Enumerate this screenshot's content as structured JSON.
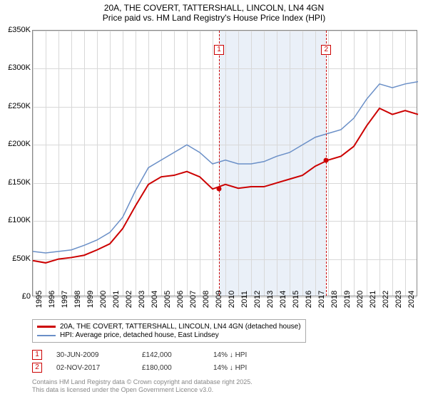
{
  "title": {
    "line1": "20A, THE COVERT, TATTERSHALL, LINCOLN, LN4 4GN",
    "line2": "Price paid vs. HM Land Registry's House Price Index (HPI)"
  },
  "chart": {
    "type": "line",
    "background_color": "#ffffff",
    "grid_color": "#d8d8d8",
    "border_color": "#888888",
    "x_years": [
      1995,
      1996,
      1997,
      1998,
      1999,
      2000,
      2001,
      2002,
      2003,
      2004,
      2005,
      2006,
      2007,
      2008,
      2009,
      2010,
      2011,
      2012,
      2013,
      2014,
      2015,
      2016,
      2017,
      2018,
      2019,
      2020,
      2021,
      2022,
      2023,
      2024
    ],
    "xlim": [
      1995,
      2025
    ],
    "ylim": [
      0,
      350000
    ],
    "ytick_step": 50000,
    "ytick_labels": [
      "£0",
      "£50K",
      "£100K",
      "£150K",
      "£200K",
      "£250K",
      "£300K",
      "£350K"
    ],
    "label_fontsize": 11,
    "shaded_region": {
      "x_start": 2009.5,
      "x_end": 2017.85,
      "color": "#eaf0f8"
    },
    "markers": [
      {
        "id": "1",
        "x": 2009.5,
        "y": 142000,
        "line_color": "#cc0000"
      },
      {
        "id": "2",
        "x": 2017.85,
        "y": 180000,
        "line_color": "#cc0000"
      }
    ],
    "series": [
      {
        "name": "20A, THE COVERT, TATTERSHALL, LINCOLN, LN4 4GN (detached house)",
        "color": "#cc0000",
        "line_width": 2,
        "data": [
          [
            1995,
            48000
          ],
          [
            1996,
            45000
          ],
          [
            1997,
            50000
          ],
          [
            1998,
            52000
          ],
          [
            1999,
            55000
          ],
          [
            2000,
            62000
          ],
          [
            2001,
            70000
          ],
          [
            2002,
            90000
          ],
          [
            2003,
            120000
          ],
          [
            2004,
            148000
          ],
          [
            2005,
            158000
          ],
          [
            2006,
            160000
          ],
          [
            2007,
            165000
          ],
          [
            2008,
            158000
          ],
          [
            2009,
            142000
          ],
          [
            2010,
            148000
          ],
          [
            2011,
            143000
          ],
          [
            2012,
            145000
          ],
          [
            2013,
            145000
          ],
          [
            2014,
            150000
          ],
          [
            2015,
            155000
          ],
          [
            2016,
            160000
          ],
          [
            2017,
            172000
          ],
          [
            2018,
            180000
          ],
          [
            2019,
            185000
          ],
          [
            2020,
            198000
          ],
          [
            2021,
            225000
          ],
          [
            2022,
            248000
          ],
          [
            2023,
            240000
          ],
          [
            2024,
            245000
          ],
          [
            2025,
            240000
          ]
        ]
      },
      {
        "name": "HPI: Average price, detached house, East Lindsey",
        "color": "#6a8fc7",
        "line_width": 1.5,
        "data": [
          [
            1995,
            60000
          ],
          [
            1996,
            58000
          ],
          [
            1997,
            60000
          ],
          [
            1998,
            62000
          ],
          [
            1999,
            68000
          ],
          [
            2000,
            75000
          ],
          [
            2001,
            85000
          ],
          [
            2002,
            105000
          ],
          [
            2003,
            140000
          ],
          [
            2004,
            170000
          ],
          [
            2005,
            180000
          ],
          [
            2006,
            190000
          ],
          [
            2007,
            200000
          ],
          [
            2008,
            190000
          ],
          [
            2009,
            175000
          ],
          [
            2010,
            180000
          ],
          [
            2011,
            175000
          ],
          [
            2012,
            175000
          ],
          [
            2013,
            178000
          ],
          [
            2014,
            185000
          ],
          [
            2015,
            190000
          ],
          [
            2016,
            200000
          ],
          [
            2017,
            210000
          ],
          [
            2018,
            215000
          ],
          [
            2019,
            220000
          ],
          [
            2020,
            235000
          ],
          [
            2021,
            260000
          ],
          [
            2022,
            280000
          ],
          [
            2023,
            275000
          ],
          [
            2024,
            280000
          ],
          [
            2025,
            283000
          ]
        ]
      }
    ]
  },
  "legend": {
    "series1": "20A, THE COVERT, TATTERSHALL, LINCOLN, LN4 4GN (detached house)",
    "series2": "HPI: Average price, detached house, East Lindsey"
  },
  "transactions": [
    {
      "marker": "1",
      "date": "30-JUN-2009",
      "price": "£142,000",
      "delta": "14% ↓ HPI"
    },
    {
      "marker": "2",
      "date": "02-NOV-2017",
      "price": "£180,000",
      "delta": "14% ↓ HPI"
    }
  ],
  "footer": {
    "line1": "Contains HM Land Registry data © Crown copyright and database right 2025.",
    "line2": "This data is licensed under the Open Government Licence v3.0."
  }
}
